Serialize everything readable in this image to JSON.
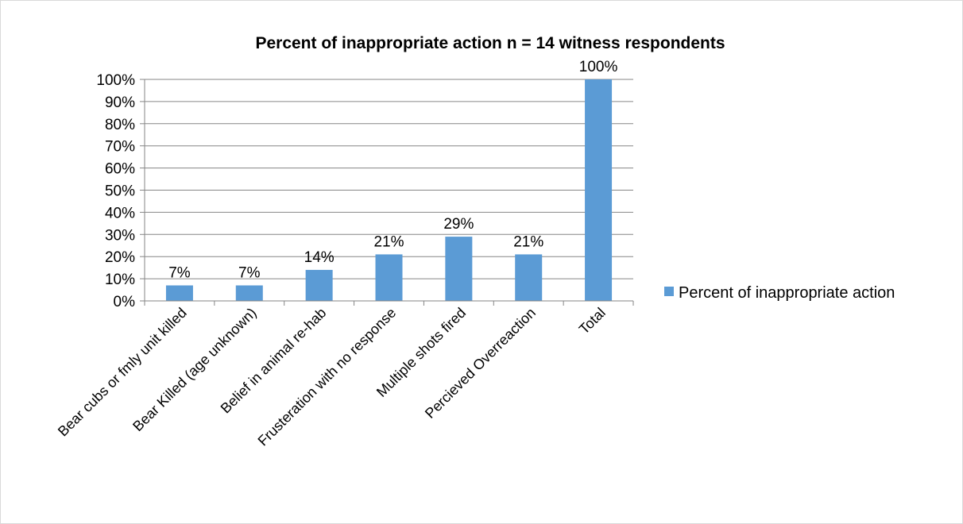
{
  "chart_data": {
    "type": "bar",
    "title": "Percent of inappropriate action n = 14 witness respondents",
    "xlabel": "",
    "ylabel": "",
    "categories": [
      "Bear cubs or fmly unit killed",
      "Bear Killed (age unknown)",
      "Belief in animal re-hab",
      "Frusteration with no response",
      "Multiple shots fired",
      "Percieved Overreaction",
      "Total"
    ],
    "series": [
      {
        "name": "Percent of inappropriate action",
        "values": [
          0.07,
          0.07,
          0.14,
          0.21,
          0.29,
          0.21,
          1.0
        ],
        "labels": [
          "7%",
          "7%",
          "14%",
          "21%",
          "29%",
          "21%",
          "100%"
        ],
        "color": "#5b9bd5"
      }
    ],
    "ylim": [
      0,
      1
    ],
    "yticks": [
      0,
      0.1,
      0.2,
      0.3,
      0.4,
      0.5,
      0.6,
      0.7,
      0.8,
      0.9,
      1.0
    ],
    "ytick_labels": [
      "0%",
      "10%",
      "20%",
      "30%",
      "40%",
      "50%",
      "60%",
      "70%",
      "80%",
      "90%",
      "100%"
    ],
    "grid": true,
    "legend_position": "right"
  }
}
